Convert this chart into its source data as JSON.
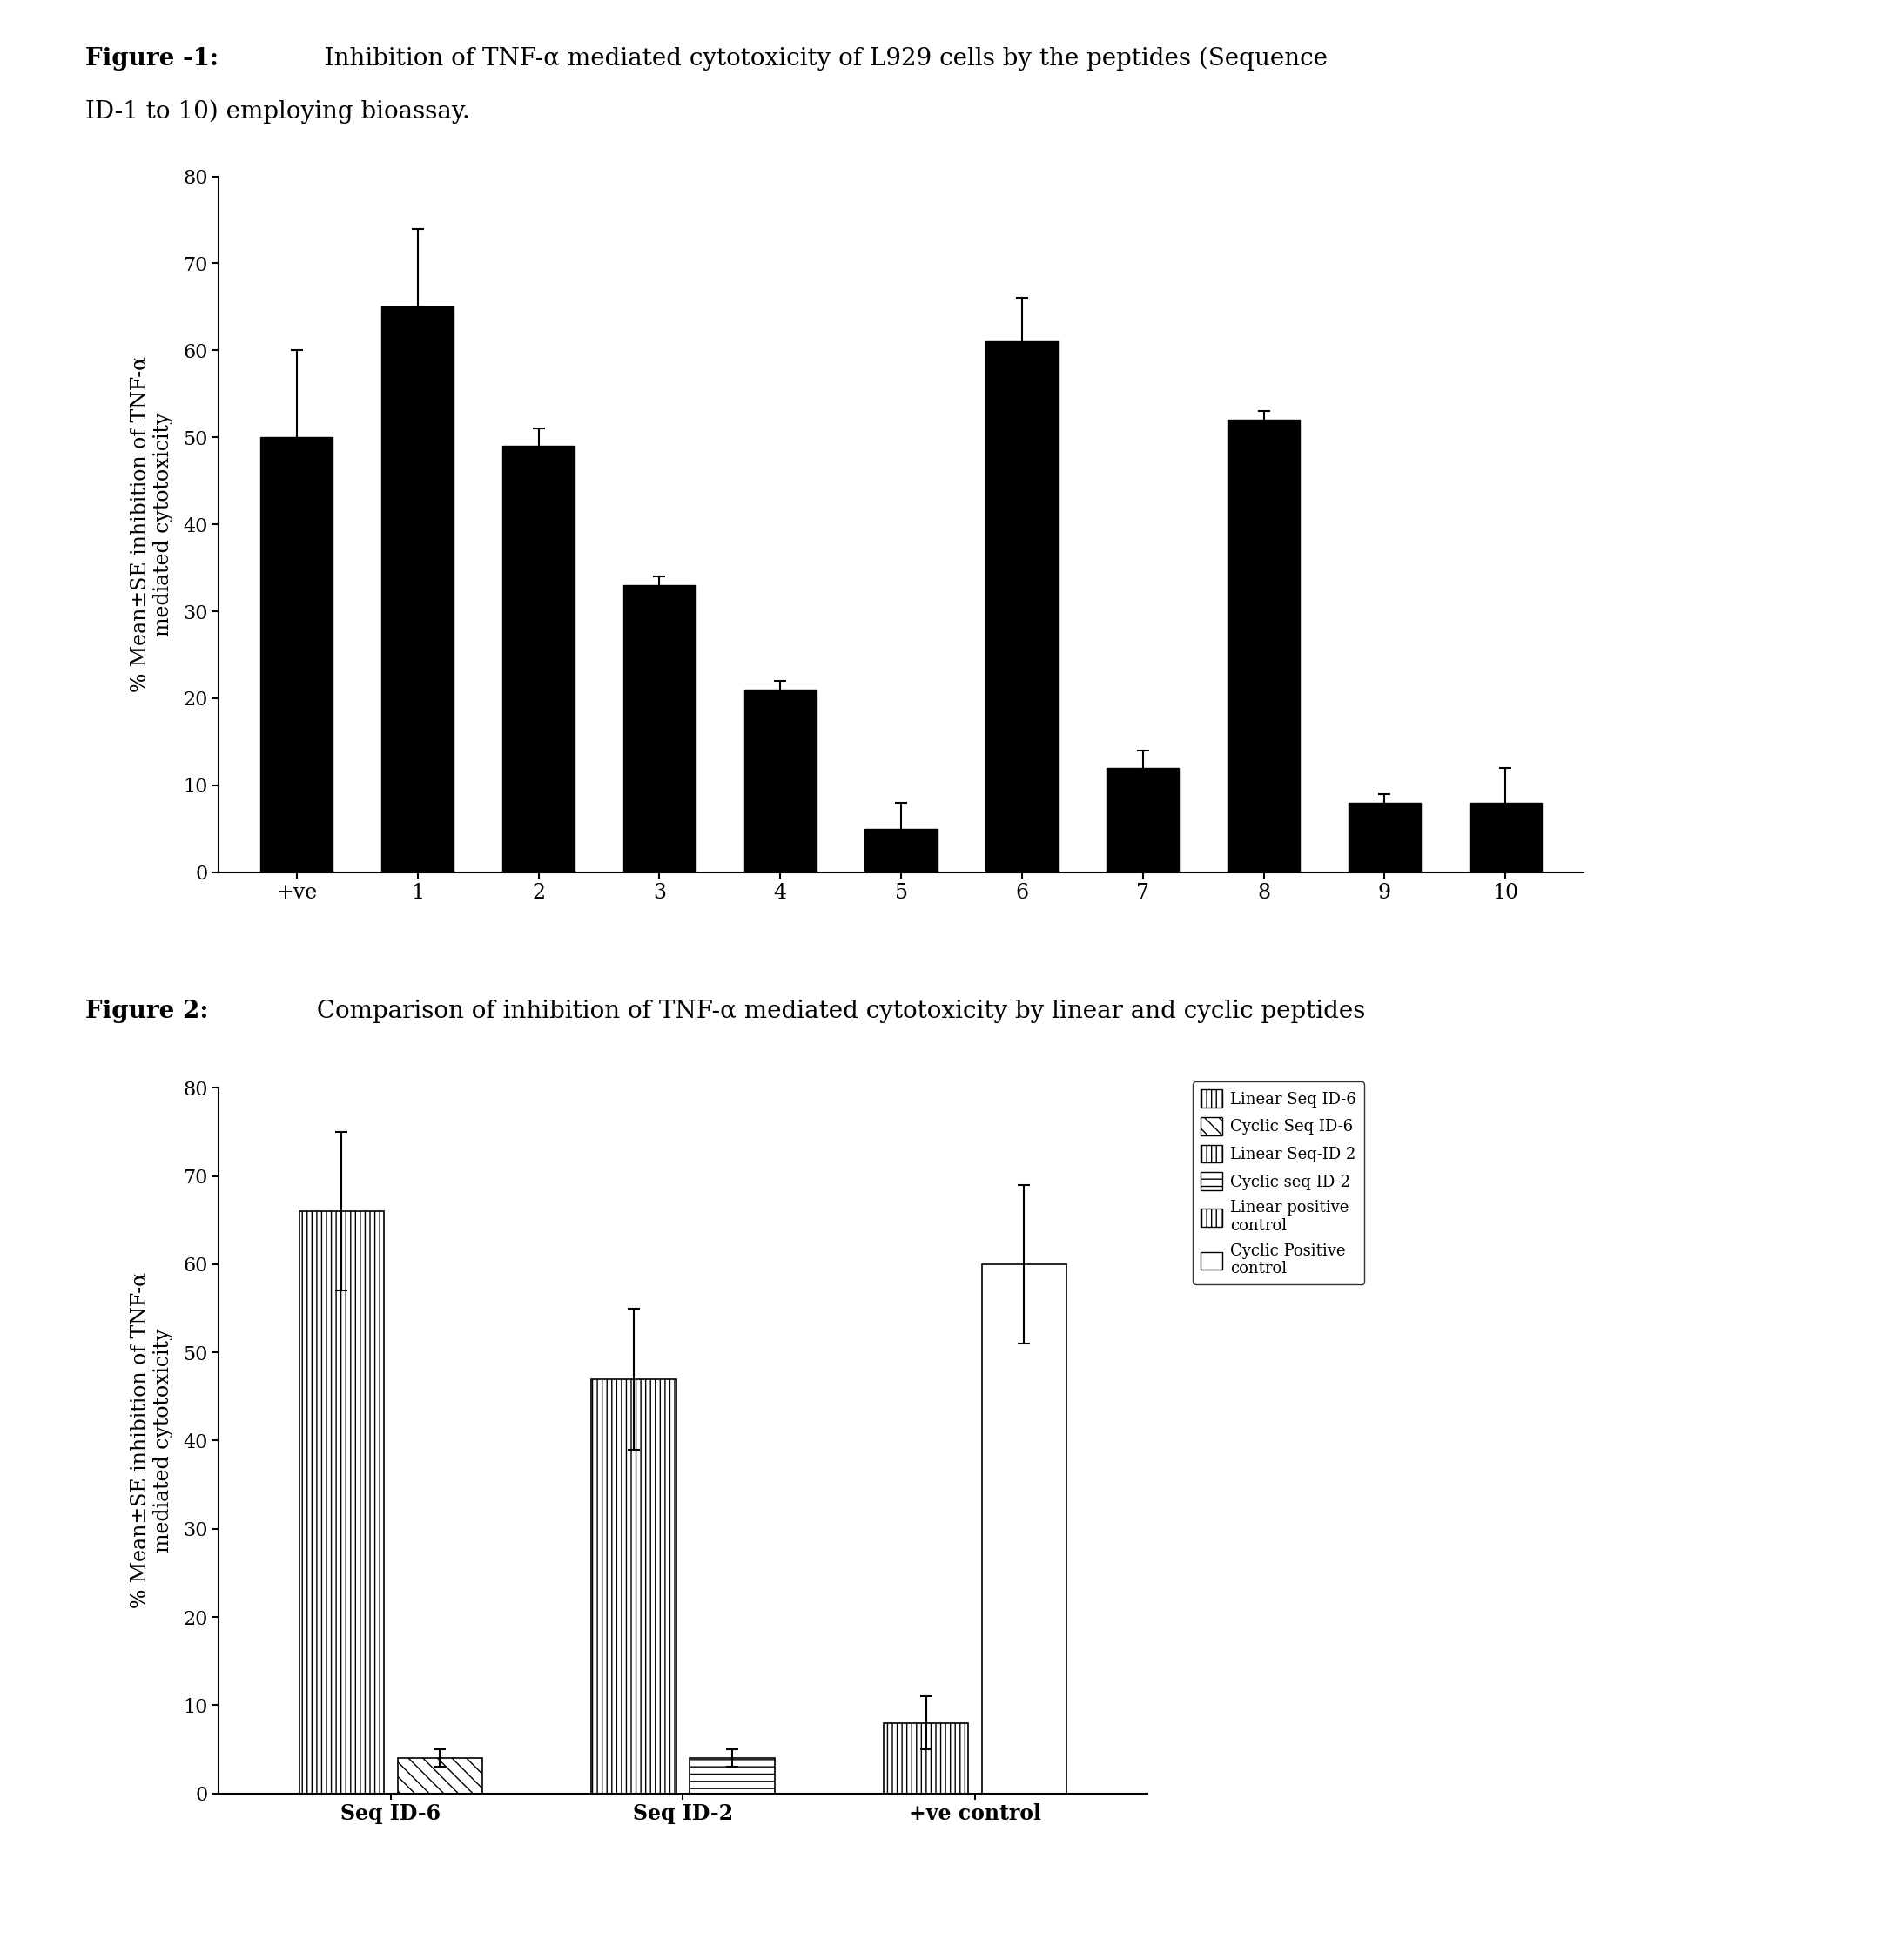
{
  "fig1_title_bold": "Figure -1:",
  "fig1_title_normal": "  Inhibition of TNF-α mediated cytotoxicity of L929 cells by the peptides (Sequence",
  "fig1_title_line2": "ID-1 to 10) employing bioassay.",
  "fig1_categories": [
    "+ve",
    "1",
    "2",
    "3",
    "4",
    "5",
    "6",
    "7",
    "8",
    "9",
    "10"
  ],
  "fig1_values": [
    50,
    65,
    49,
    33,
    21,
    5,
    61,
    12,
    52,
    8,
    8
  ],
  "fig1_errors": [
    10,
    9,
    2,
    1,
    1,
    3,
    5,
    2,
    1,
    1,
    4
  ],
  "fig1_ylabel": "% Mean±SE inhibition of TNF-α\nmediated cytotoxicity",
  "fig1_ylim": [
    0,
    80
  ],
  "fig1_yticks": [
    0,
    10,
    20,
    30,
    40,
    50,
    60,
    70,
    80
  ],
  "fig2_title_bold": "Figure 2:",
  "fig2_title_normal": " Comparison of inhibition of TNF-α mediated cytotoxicity by linear and cyclic peptides",
  "fig2_groups": [
    "Seq ID-6",
    "Seq ID-2",
    "+ve control"
  ],
  "fig2_values": [
    [
      66,
      4
    ],
    [
      47,
      4
    ],
    [
      8,
      60
    ]
  ],
  "fig2_errors": [
    [
      9,
      1
    ],
    [
      8,
      1
    ],
    [
      3,
      9
    ]
  ],
  "fig2_ylabel": "% Mean±SE inhibition of TNF-α\nmediated cytotoxicity",
  "fig2_ylim": [
    0,
    80
  ],
  "fig2_yticks": [
    0,
    10,
    20,
    30,
    40,
    50,
    60,
    70,
    80
  ],
  "fig2_legend_labels": [
    "Linear Seq ID-6",
    "Cyclic Seq ID-6",
    "Linear Seq-ID 2",
    "Cyclic seq-ID-2",
    "Linear positive\ncontrol",
    "Cyclic Positive\ncontrol"
  ],
  "background": "#ffffff",
  "title_fontsize": 20,
  "axis_fontsize": 17,
  "tick_fontsize": 16
}
